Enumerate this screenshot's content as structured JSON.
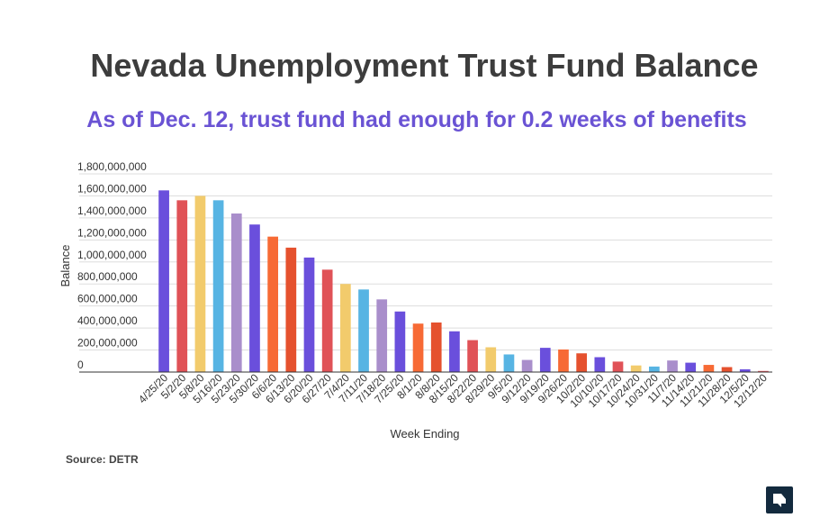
{
  "title": "Nevada Unemployment Trust Fund Balance",
  "subtitle": "As of Dec. 12, trust fund had enough for 0.2 weeks of benefits",
  "source": "Source: DETR",
  "logo_icon": "nevada-independent-logo-icon",
  "chart_data": {
    "type": "bar",
    "title": "",
    "xlabel": "Week Ending",
    "ylabel": "Balance",
    "ylim": [
      0,
      1800000000
    ],
    "yticks": [
      "0",
      "200,000,000",
      "400,000,000",
      "600,000,000",
      "800,000,000",
      "1,000,000,000",
      "1,200,000,000",
      "1,400,000,000",
      "1,600,000,000",
      "1,800,000,000"
    ],
    "grid": true,
    "legend": "none",
    "categories": [
      "4/25/20",
      "5/2/20",
      "5/8/20",
      "5/16/20",
      "5/23/20",
      "5/30/20",
      "6/6/20",
      "6/13/20",
      "6/20/20",
      "6/27/20",
      "7/4/20",
      "7/11/20",
      "7/18/20",
      "7/25/20",
      "8/1/20",
      "8/8/20",
      "8/15/20",
      "8/22/20",
      "8/29/20",
      "9/5/20",
      "9/12/20",
      "9/19/20",
      "9/26/20",
      "10/2/20",
      "10/10/20",
      "10/17/20",
      "10/24/20",
      "10/31/20",
      "11/7/20",
      "11/14/20",
      "11/21/20",
      "11/28/20",
      "12/5/20",
      "12/12/20"
    ],
    "values": [
      1650000000,
      1560000000,
      1600000000,
      1560000000,
      1440000000,
      1340000000,
      1230000000,
      1130000000,
      1040000000,
      930000000,
      800000000,
      750000000,
      660000000,
      550000000,
      440000000,
      450000000,
      370000000,
      290000000,
      225000000,
      160000000,
      110000000,
      220000000,
      205000000,
      170000000,
      135000000,
      95000000,
      60000000,
      50000000,
      105000000,
      85000000,
      65000000,
      45000000,
      25000000,
      10000000
    ],
    "colors": [
      "#6a4fdc",
      "#e05257",
      "#f2cb6c",
      "#57b4e3",
      "#a98ecb",
      "#6a4fdc",
      "#f76a35",
      "#e5512e",
      "#6a4fdc",
      "#e05257",
      "#f2cb6c",
      "#57b4e3",
      "#a98ecb",
      "#6a4fdc",
      "#f76a35",
      "#e5512e",
      "#6a4fdc",
      "#e05257",
      "#f2cb6c",
      "#57b4e3",
      "#a98ecb",
      "#6a4fdc",
      "#f76a35",
      "#e5512e",
      "#6a4fdc",
      "#e05257",
      "#f2cb6c",
      "#57b4e3",
      "#a98ecb",
      "#6a4fdc",
      "#f76a35",
      "#e5512e",
      "#6a4fdc",
      "#e05257"
    ]
  }
}
